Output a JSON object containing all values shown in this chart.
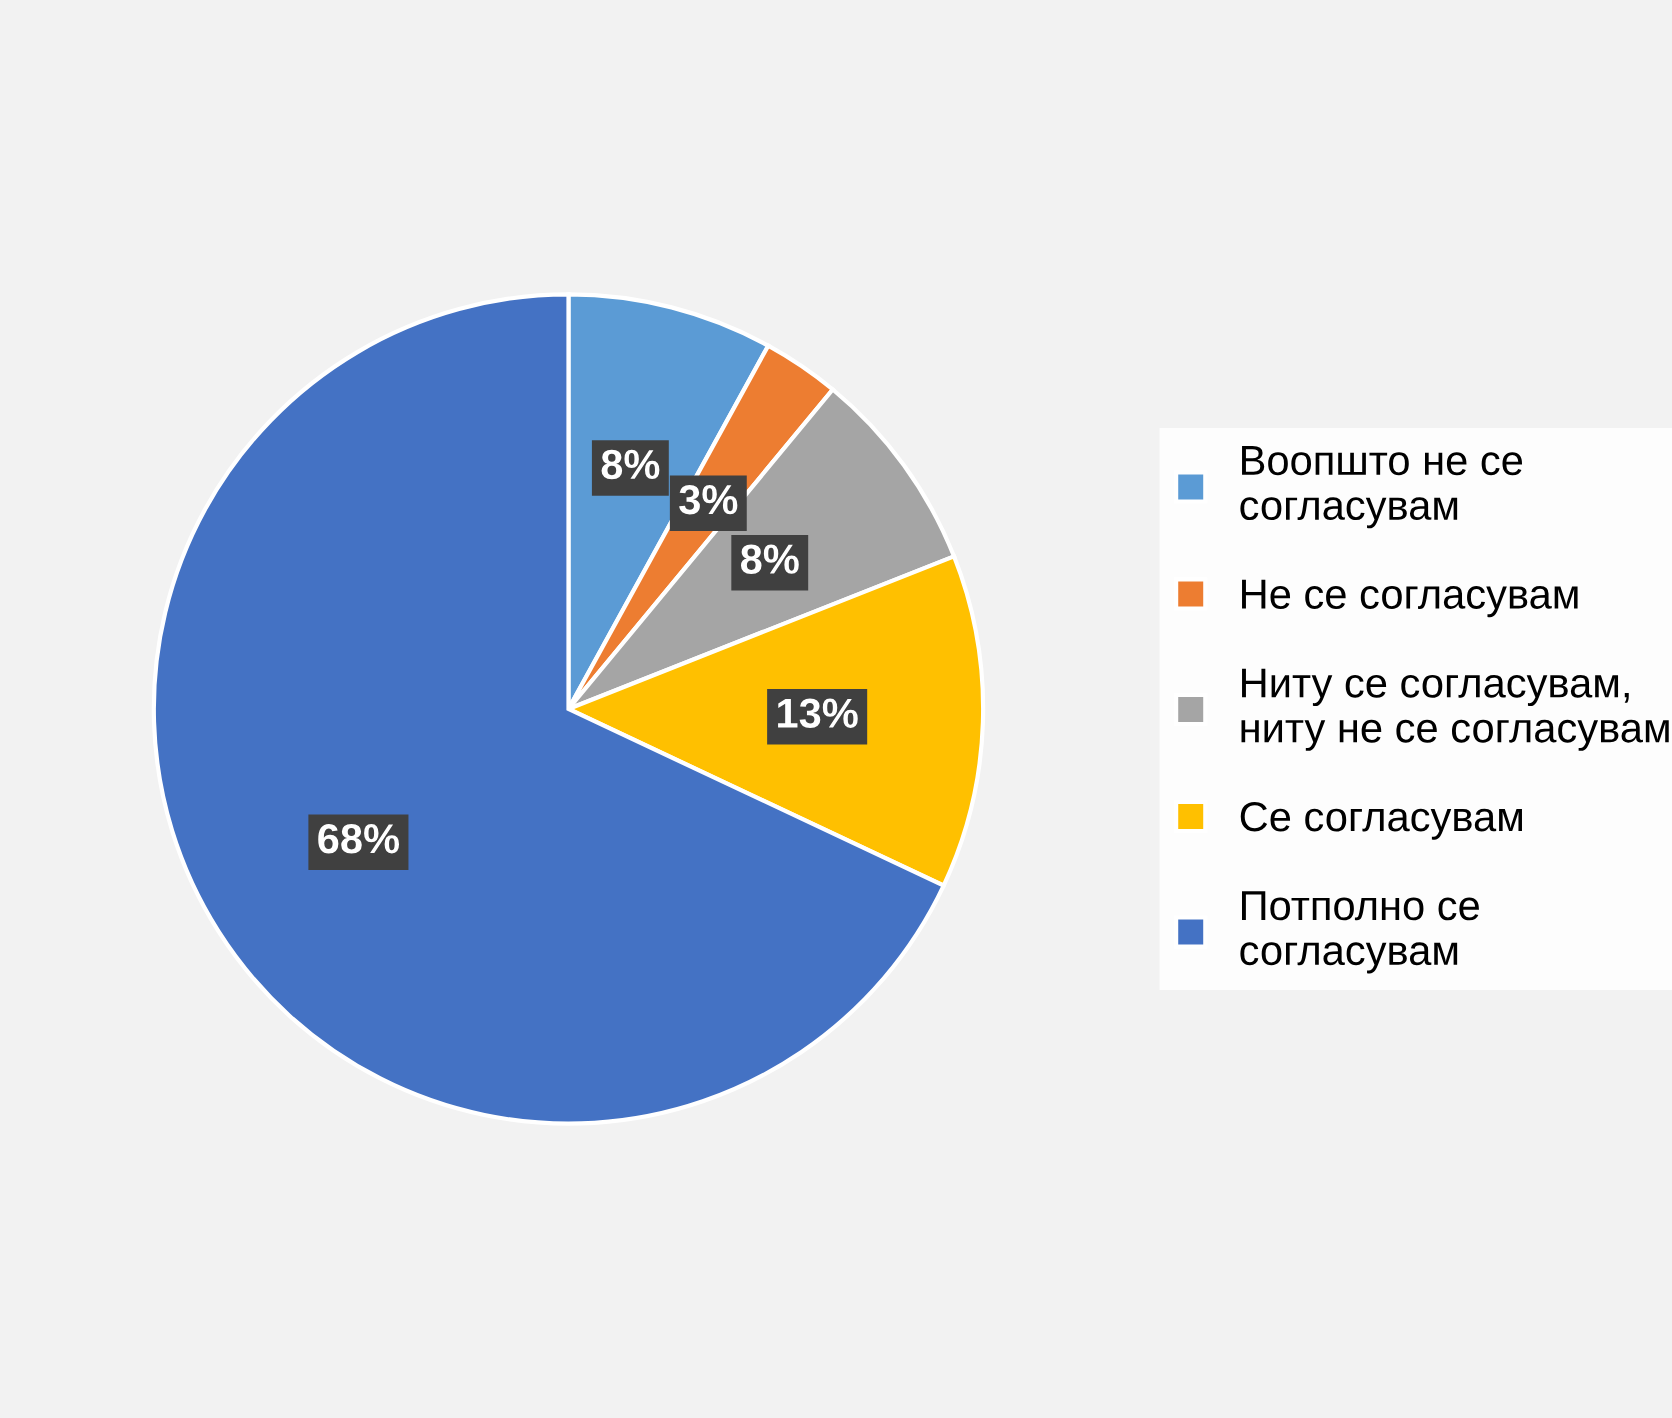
{
  "chart_data": {
    "type": "pie",
    "categories": [
      "Воопшто не се\nсогласувам",
      "Не се согласувам",
      "Ниту се согласувам,\nниту не се согласувам",
      "Се согласувам",
      "Потполно се\nсогласувам"
    ],
    "values": [
      8,
      3,
      8,
      13,
      68
    ],
    "value_labels": [
      "8%",
      "3%",
      "8%",
      "13%",
      "68%"
    ],
    "colors": [
      "#5b9bd5",
      "#ed7d31",
      "#a5a5a5",
      "#ffc000",
      "#4472c4"
    ],
    "legend": "right"
  }
}
